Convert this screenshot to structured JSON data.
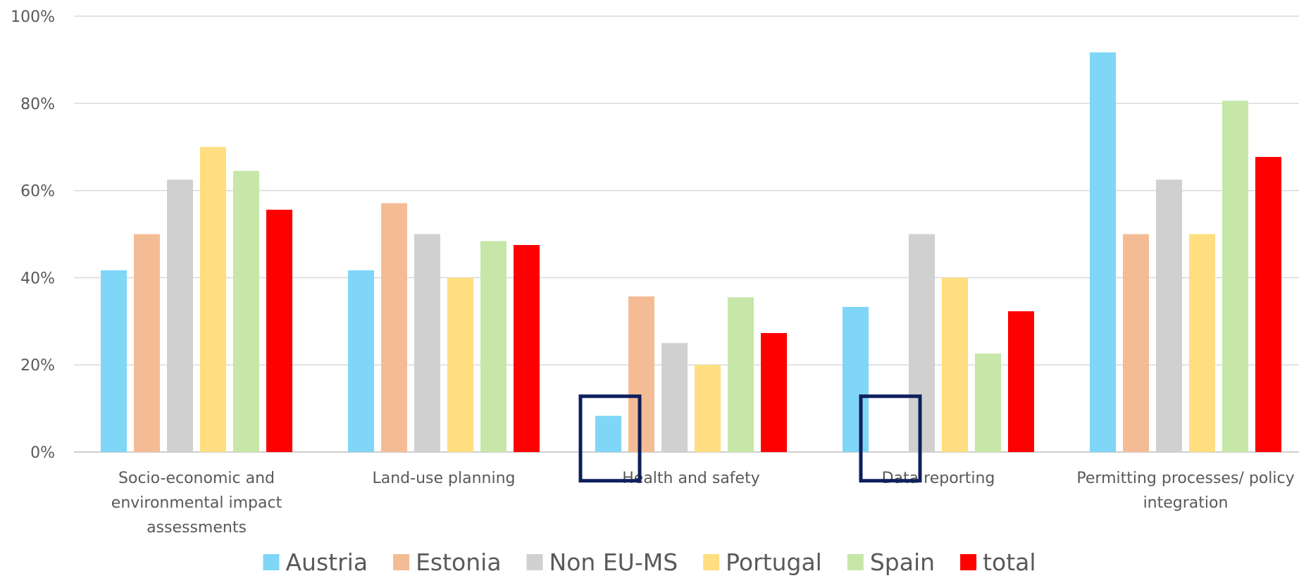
{
  "chart_data": {
    "type": "bar",
    "categories": [
      [
        "Socio-economic and",
        "environmental impact",
        "assessments"
      ],
      [
        "Land-use planning"
      ],
      [
        "Health and safety"
      ],
      [
        "Data reporting"
      ],
      [
        "Permitting processes/ policy",
        "integration"
      ]
    ],
    "series": [
      {
        "name": "Austria",
        "color": "#7fd6f7",
        "values": [
          41.7,
          41.7,
          8.3,
          33.3,
          91.7
        ]
      },
      {
        "name": "Estonia",
        "color": "#f4bc95",
        "values": [
          50.0,
          57.1,
          35.7,
          0,
          50.0
        ]
      },
      {
        "name": "Non EU-MS",
        "color": "#d0d0d0",
        "values": [
          62.5,
          50.0,
          25.0,
          50.0,
          62.5
        ]
      },
      {
        "name": "Portugal",
        "color": "#fede80",
        "values": [
          70.0,
          40.0,
          20.0,
          40.0,
          50.0
        ]
      },
      {
        "name": "Spain",
        "color": "#c6e7a8",
        "values": [
          64.5,
          48.4,
          35.5,
          22.6,
          80.6
        ]
      },
      {
        "name": "total",
        "color": "#ff0000",
        "values": [
          55.6,
          47.5,
          27.3,
          32.3,
          67.7
        ]
      }
    ],
    "y_ticks": [
      "0%",
      "20%",
      "40%",
      "60%",
      "80%",
      "100%"
    ],
    "ylim": [
      0,
      100
    ],
    "grid": true,
    "legend": "bottom",
    "annotations": [
      {
        "type": "highlight-box",
        "category_index": 2,
        "series_index": 0,
        "color": "#0d1f5c"
      },
      {
        "type": "highlight-box",
        "category_index": 3,
        "series_index": 1,
        "color": "#0d1f5c"
      }
    ]
  }
}
